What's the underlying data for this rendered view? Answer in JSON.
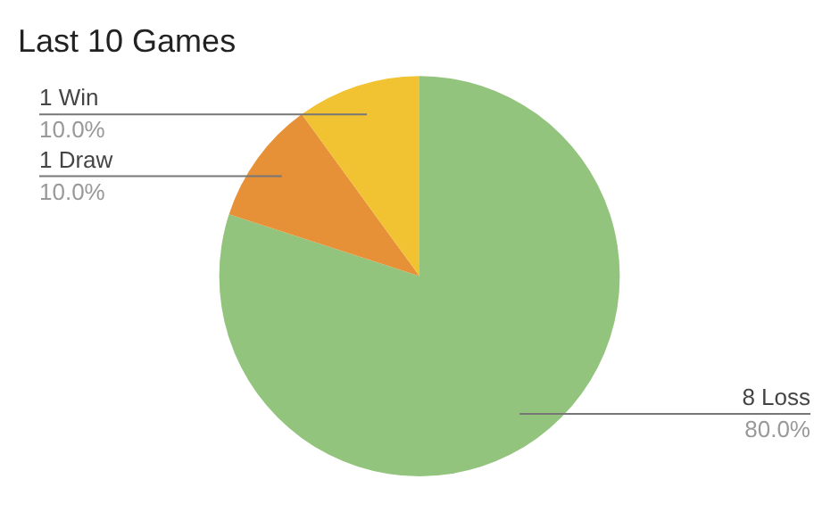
{
  "chart_data": {
    "type": "pie",
    "title": "Last 10 Games",
    "categories": [
      "8 Loss",
      "1 Draw",
      "1 Win"
    ],
    "values": [
      80,
      10,
      10
    ],
    "colors": [
      "#93c47d",
      "#e69138",
      "#f1c232"
    ],
    "value_labels": [
      "80.0%",
      "10.0%",
      "10.0%"
    ],
    "legend": false
  }
}
